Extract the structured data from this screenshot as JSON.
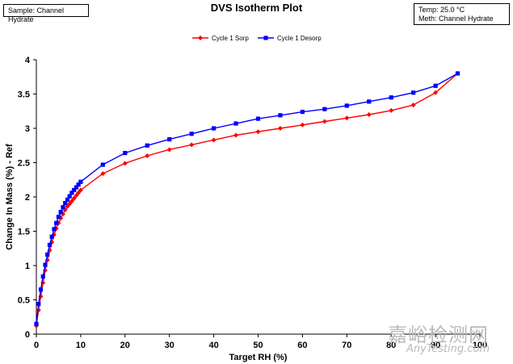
{
  "header": {
    "sample": "Sample:  Channel Hydrate",
    "temp": "Temp:  25.0 °C",
    "meth": "Meth:  Channel Hydrate"
  },
  "watermark": {
    "cn": "嘉峪检测网",
    "en": "AnyTesting.com"
  },
  "chart_data": {
    "type": "line",
    "title": "DVS Isotherm Plot",
    "xlabel": "Target RH (%)",
    "ylabel": "Change In Mass (%) - Ref",
    "xlim": [
      0,
      100
    ],
    "ylim": [
      0,
      4
    ],
    "xticks": [
      0,
      10,
      20,
      30,
      40,
      50,
      60,
      70,
      80,
      90,
      100
    ],
    "yticks": [
      0,
      0.5,
      1,
      1.5,
      2,
      2.5,
      3,
      3.5,
      4
    ],
    "grid": false,
    "legend_position": "top-center",
    "series": [
      {
        "name": "Cycle 1 Sorp",
        "color": "#ff0000",
        "marker": "diamond",
        "x": [
          0,
          0.5,
          1,
          1.5,
          2,
          2.5,
          3,
          3.5,
          4,
          4.5,
          5,
          5.5,
          6,
          6.5,
          7,
          7.5,
          8,
          8.5,
          9,
          9.5,
          10,
          15,
          20,
          25,
          30,
          35,
          40,
          45,
          50,
          55,
          60,
          65,
          70,
          75,
          80,
          85,
          90,
          95
        ],
        "y": [
          0.12,
          0.35,
          0.55,
          0.75,
          0.93,
          1.08,
          1.22,
          1.34,
          1.45,
          1.54,
          1.62,
          1.69,
          1.75,
          1.81,
          1.86,
          1.9,
          1.94,
          1.98,
          2.02,
          2.06,
          2.1,
          2.34,
          2.49,
          2.6,
          2.69,
          2.76,
          2.83,
          2.9,
          2.95,
          3.0,
          3.05,
          3.1,
          3.15,
          3.2,
          3.26,
          3.34,
          3.52,
          3.8
        ]
      },
      {
        "name": "Cycle 1 Desorp",
        "color": "#0000ff",
        "marker": "square",
        "x": [
          95,
          90,
          85,
          80,
          75,
          70,
          65,
          60,
          55,
          50,
          45,
          40,
          35,
          30,
          25,
          20,
          15,
          10,
          9.5,
          9,
          8.5,
          8,
          7.5,
          7,
          6.5,
          6,
          5.5,
          5,
          4.5,
          4,
          3.5,
          3,
          2.5,
          2,
          1.5,
          1,
          0.5,
          0
        ],
        "y": [
          3.8,
          3.62,
          3.52,
          3.45,
          3.39,
          3.33,
          3.28,
          3.24,
          3.19,
          3.14,
          3.07,
          3.0,
          2.92,
          2.84,
          2.75,
          2.64,
          2.47,
          2.22,
          2.18,
          2.14,
          2.1,
          2.06,
          2.01,
          1.96,
          1.91,
          1.85,
          1.78,
          1.71,
          1.62,
          1.53,
          1.42,
          1.3,
          1.16,
          1.01,
          0.84,
          0.65,
          0.44,
          0.15
        ]
      }
    ]
  }
}
